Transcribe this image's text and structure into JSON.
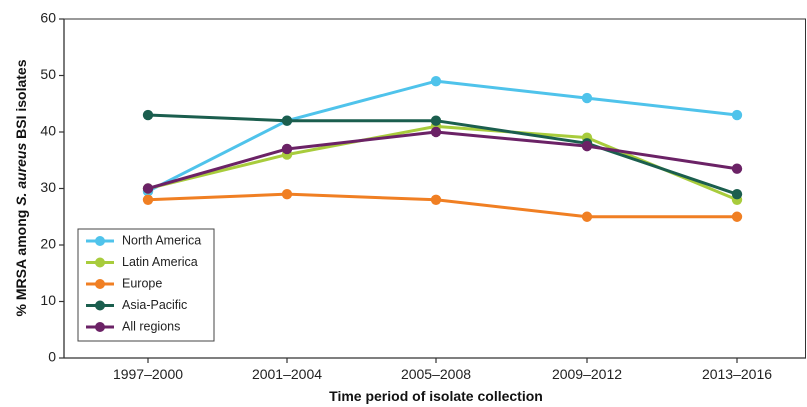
{
  "chart_data": {
    "type": "line",
    "categories": [
      "1997–2000",
      "2001–2004",
      "2005–2008",
      "2009–2012",
      "2013–2016"
    ],
    "xlabel": "Time period of isolate collection",
    "ylabel_parts": [
      "% MRSA among ",
      "S. aureus",
      " BSI isolates"
    ],
    "ylim": [
      0,
      60
    ],
    "yticks": [
      0,
      10,
      20,
      30,
      40,
      50,
      60
    ],
    "grid": false,
    "legend_position": "bottom-left",
    "series": [
      {
        "name": "North America",
        "color": "#4FC3EB",
        "values": [
          29.5,
          42,
          49,
          46,
          43
        ]
      },
      {
        "name": "Latin America",
        "color": "#A8CC3C",
        "values": [
          30,
          36,
          41,
          39,
          28
        ]
      },
      {
        "name": "Europe",
        "color": "#F07F23",
        "values": [
          28,
          29,
          28,
          25,
          25
        ]
      },
      {
        "name": "Asia-Pacific",
        "color": "#1B5E4E",
        "values": [
          43,
          42,
          42,
          38,
          29
        ]
      },
      {
        "name": "All regions",
        "color": "#6B2266",
        "values": [
          30,
          37,
          40,
          37.5,
          33.5
        ]
      }
    ]
  }
}
